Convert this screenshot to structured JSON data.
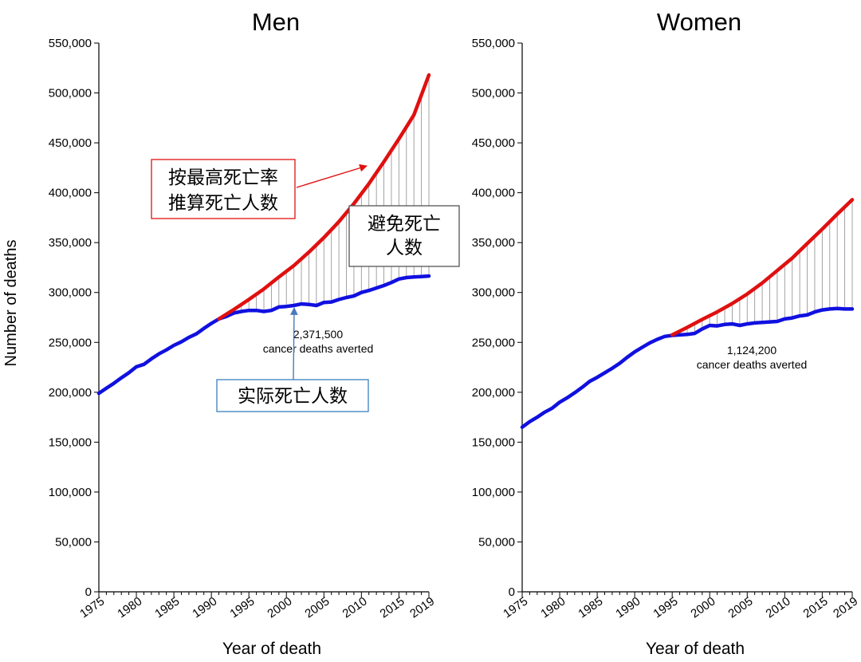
{
  "y_axis_label": "Number of deaths",
  "chart_data": [
    {
      "type": "line",
      "title": "Men",
      "xlabel": "Year of death",
      "ylabel": "Number of deaths",
      "xlim": [
        1975,
        2019
      ],
      "ylim": [
        0,
        550000
      ],
      "x_ticks": [
        "1975",
        "1980",
        "1985",
        "1990",
        "1995",
        "2000",
        "2005",
        "2010",
        "2015",
        "2019"
      ],
      "y_ticks": [
        "0",
        "50,000",
        "100,000",
        "150,000",
        "200,000",
        "250,000",
        "300,000",
        "350,000",
        "400,000",
        "450,000",
        "500,000",
        "550,000"
      ],
      "colors": {
        "actual": "#1010e0",
        "expected": "#e01010",
        "gap": "#999999"
      },
      "series": [
        {
          "key": "actual",
          "x": [
            1975,
            1976,
            1977,
            1978,
            1979,
            1980,
            1981,
            1982,
            1983,
            1984,
            1985,
            1986,
            1987,
            1988,
            1989,
            1990,
            1991,
            1992,
            1993,
            1994,
            1995,
            1996,
            1997,
            1998,
            1999,
            2000,
            2001,
            2002,
            2003,
            2004,
            2005,
            2006,
            2007,
            2008,
            2009,
            2010,
            2011,
            2012,
            2013,
            2014,
            2015,
            2016,
            2017,
            2018,
            2019
          ],
          "values": [
            199000,
            204000,
            209000,
            214500,
            219500,
            225500,
            228000,
            233500,
            238500,
            242500,
            247000,
            250500,
            255000,
            258500,
            264000,
            269000,
            273500,
            276000,
            279500,
            281000,
            282000,
            282000,
            281000,
            282000,
            285500,
            286000,
            287000,
            288500,
            288000,
            287000,
            290000,
            290500,
            293000,
            295000,
            296500,
            300000,
            302000,
            304500,
            307000,
            310000,
            313500,
            315000,
            315500,
            316000,
            316500
          ]
        },
        {
          "key": "expected",
          "x": [
            1991,
            1993,
            1995,
            1997,
            1999,
            2001,
            2003,
            2005,
            2007,
            2009,
            2011,
            2013,
            2015,
            2017,
            2019
          ],
          "values": [
            273500,
            283000,
            293000,
            303500,
            315500,
            327000,
            340500,
            355000,
            371000,
            389000,
            409000,
            431000,
            454000,
            478000,
            518000
          ]
        }
      ],
      "annotations": [
        {
          "key": "averted",
          "lines": [
            "2,371,500",
            "cancer deaths averted"
          ]
        },
        {
          "key": "expected_label",
          "lines": [
            "按最高死亡率",
            "推算死亡人数"
          ]
        },
        {
          "key": "averted_label",
          "lines": [
            "避免死亡",
            "人数"
          ]
        },
        {
          "key": "actual_label",
          "lines": [
            "实际死亡人数"
          ]
        }
      ]
    },
    {
      "type": "line",
      "title": "Women",
      "xlabel": "Year of death",
      "ylabel": "Number of deaths",
      "xlim": [
        1975,
        2019
      ],
      "ylim": [
        0,
        550000
      ],
      "x_ticks": [
        "1975",
        "1980",
        "1985",
        "1990",
        "1995",
        "2000",
        "2005",
        "2010",
        "2015",
        "2019"
      ],
      "y_ticks": [
        "0",
        "50,000",
        "100,000",
        "150,000",
        "200,000",
        "250,000",
        "300,000",
        "350,000",
        "400,000",
        "450,000",
        "500,000",
        "550,000"
      ],
      "colors": {
        "actual": "#1010e0",
        "expected": "#e01010",
        "gap": "#999999"
      },
      "series": [
        {
          "key": "actual",
          "x": [
            1975,
            1976,
            1977,
            1978,
            1979,
            1980,
            1981,
            1982,
            1983,
            1984,
            1985,
            1986,
            1987,
            1988,
            1989,
            1990,
            1991,
            1992,
            1993,
            1994,
            1995,
            1996,
            1997,
            1998,
            1999,
            2000,
            2001,
            2002,
            2003,
            2004,
            2005,
            2006,
            2007,
            2008,
            2009,
            2010,
            2011,
            2012,
            2013,
            2014,
            2015,
            2016,
            2017,
            2018,
            2019
          ],
          "values": [
            165000,
            170500,
            175000,
            180000,
            184000,
            190000,
            194500,
            199500,
            205000,
            211000,
            215000,
            219500,
            224000,
            229000,
            235000,
            240500,
            245000,
            249500,
            253000,
            256000,
            257000,
            257500,
            258000,
            259000,
            263500,
            267000,
            266500,
            268000,
            268500,
            267000,
            268500,
            269500,
            270000,
            270500,
            271000,
            273500,
            274500,
            276500,
            277500,
            280500,
            282500,
            283500,
            284000,
            283500,
            283500
          ]
        },
        {
          "key": "expected",
          "x": [
            1995,
            1997,
            1999,
            2001,
            2003,
            2005,
            2007,
            2009,
            2011,
            2013,
            2015,
            2017,
            2019
          ],
          "values": [
            257500,
            265000,
            273000,
            280500,
            289000,
            298500,
            309500,
            322000,
            334500,
            349000,
            363500,
            378500,
            393000
          ]
        }
      ],
      "annotations": [
        {
          "key": "averted",
          "lines": [
            "1,124,200",
            "cancer deaths averted"
          ]
        }
      ]
    }
  ]
}
